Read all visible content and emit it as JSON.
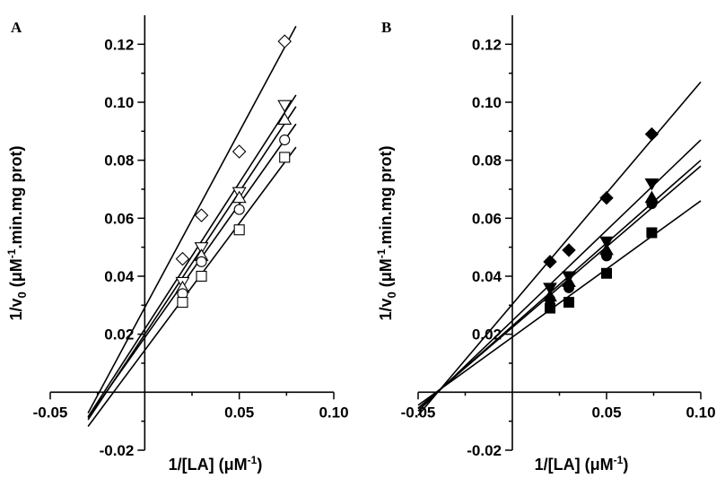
{
  "chart_data": [
    {
      "type": "scatter",
      "panel_label": "A",
      "xlabel_prefix": "1/[LA] (μM",
      "xlabel_sup": "-1",
      "xlabel_suffix": ")",
      "ylabel_prefix": "1/v",
      "ylabel_sub": "0",
      "ylabel_mid": " (μM",
      "ylabel_sup": "-1",
      "ylabel_suffix": ".min.mg prot)",
      "xlim": [
        -0.05,
        0.1
      ],
      "ylim": [
        -0.02,
        0.13
      ],
      "x_ticks": [
        -0.05,
        0.05,
        0.1
      ],
      "x_tick_labels": [
        "-0.05",
        "0.05",
        "0.10"
      ],
      "y_ticks": [
        -0.02,
        0.02,
        0.04,
        0.06,
        0.08,
        0.1,
        0.12
      ],
      "y_tick_labels": [
        "-0.02",
        "0.02",
        "0.04",
        "0.06",
        "0.08",
        "0.10",
        "0.12"
      ],
      "grid": false,
      "series": [
        {
          "marker": "diamond-open",
          "x": [
            0.02,
            0.03,
            0.05,
            0.074
          ],
          "y": [
            0.046,
            0.061,
            0.083,
            0.121
          ],
          "fit_x": [
            -0.03,
            0.08
          ],
          "fit_y": [
            -0.0072,
            0.1262
          ]
        },
        {
          "marker": "triangle-down-open",
          "x": [
            0.02,
            0.03,
            0.05,
            0.074
          ],
          "y": [
            0.038,
            0.05,
            0.069,
            0.099
          ],
          "fit_x": [
            -0.03,
            0.08
          ],
          "fit_y": [
            -0.0085,
            0.1025
          ]
        },
        {
          "marker": "triangle-up-open",
          "x": [
            0.02,
            0.03,
            0.05,
            0.074
          ],
          "y": [
            0.036,
            0.047,
            0.067,
            0.094
          ],
          "fit_x": [
            -0.03,
            0.08
          ],
          "fit_y": [
            -0.0095,
            0.0985
          ]
        },
        {
          "marker": "circle-open",
          "x": [
            0.02,
            0.03,
            0.05,
            0.074
          ],
          "y": [
            0.034,
            0.045,
            0.063,
            0.087
          ],
          "fit_x": [
            -0.03,
            0.08
          ],
          "fit_y": [
            -0.0088,
            0.0925
          ]
        },
        {
          "marker": "square-open",
          "x": [
            0.02,
            0.03,
            0.05,
            0.074
          ],
          "y": [
            0.031,
            0.04,
            0.056,
            0.081
          ],
          "fit_x": [
            -0.03,
            0.08
          ],
          "fit_y": [
            -0.0118,
            0.0845
          ]
        }
      ]
    },
    {
      "type": "scatter",
      "panel_label": "B",
      "xlabel_prefix": "1/[LA] (μM",
      "xlabel_sup": "-1",
      "xlabel_suffix": ")",
      "ylabel_prefix": "1/v",
      "ylabel_sub": "0",
      "ylabel_mid": " (μM",
      "ylabel_sup": "-1",
      "ylabel_suffix": ".min.mg prot)",
      "xlim": [
        -0.05,
        0.1
      ],
      "ylim": [
        -0.02,
        0.13
      ],
      "x_ticks": [
        -0.05,
        0.05,
        0.1
      ],
      "x_tick_labels": [
        "-0.05",
        "0.05",
        "0.10"
      ],
      "y_ticks": [
        -0.02,
        0.02,
        0.04,
        0.06,
        0.08,
        0.1,
        0.12
      ],
      "y_tick_labels": [
        "-0.02",
        "0.02",
        "0.04",
        "0.06",
        "0.08",
        "0.10",
        "0.12"
      ],
      "grid": false,
      "series": [
        {
          "marker": "diamond-filled",
          "x": [
            0.02,
            0.03,
            0.05,
            0.074
          ],
          "y": [
            0.045,
            0.049,
            0.067,
            0.089
          ],
          "fit_x": [
            -0.05,
            0.1
          ],
          "fit_y": [
            -0.008,
            0.107
          ]
        },
        {
          "marker": "triangle-down-filled",
          "x": [
            0.02,
            0.03,
            0.05,
            0.074
          ],
          "y": [
            0.036,
            0.04,
            0.052,
            0.072
          ],
          "fit_x": [
            -0.05,
            0.1
          ],
          "fit_y": [
            -0.0065,
            0.087
          ]
        },
        {
          "marker": "triangle-up-filled",
          "x": [
            0.02,
            0.03,
            0.05,
            0.074
          ],
          "y": [
            0.033,
            0.038,
            0.049,
            0.067
          ],
          "fit_x": [
            -0.05,
            0.1
          ],
          "fit_y": [
            -0.0057,
            0.08
          ]
        },
        {
          "marker": "circle-filled",
          "x": [
            0.02,
            0.03,
            0.05,
            0.074
          ],
          "y": [
            0.032,
            0.036,
            0.047,
            0.065
          ],
          "fit_x": [
            -0.05,
            0.1
          ],
          "fit_y": [
            -0.0055,
            0.078
          ]
        },
        {
          "marker": "square-filled",
          "x": [
            0.02,
            0.03,
            0.05,
            0.074
          ],
          "y": [
            0.029,
            0.031,
            0.041,
            0.055
          ],
          "fit_x": [
            -0.05,
            0.1
          ],
          "fit_y": [
            -0.0045,
            0.066
          ]
        }
      ]
    }
  ]
}
